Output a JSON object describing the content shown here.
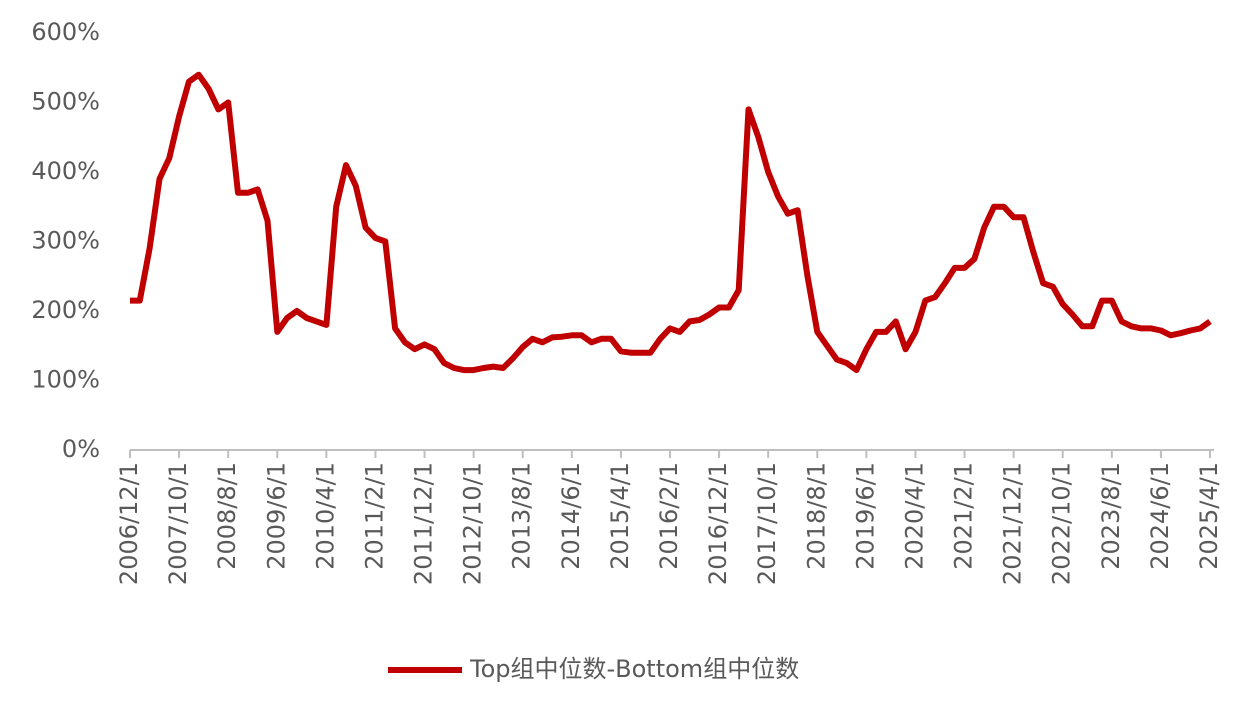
{
  "chart_data": {
    "type": "line",
    "categories": [
      "2006/12/1",
      null,
      null,
      null,
      null,
      "2007/10/1",
      null,
      null,
      null,
      null,
      "2008/8/1",
      null,
      null,
      null,
      null,
      "2009/6/1",
      null,
      null,
      null,
      null,
      "2010/4/1",
      null,
      null,
      null,
      null,
      "2011/2/1",
      null,
      null,
      null,
      null,
      "2011/12/1",
      null,
      null,
      null,
      null,
      "2012/10/1",
      null,
      null,
      null,
      null,
      "2013/8/1",
      null,
      null,
      null,
      null,
      "2014/6/1",
      null,
      null,
      null,
      null,
      "2015/4/1",
      null,
      null,
      null,
      null,
      "2016/2/1",
      null,
      null,
      null,
      null,
      "2016/12/1",
      null,
      null,
      null,
      null,
      "2017/10/1",
      null,
      null,
      null,
      null,
      "2018/8/1",
      null,
      null,
      null,
      null,
      "2019/6/1",
      null,
      null,
      null,
      null,
      "2020/4/1",
      null,
      null,
      null,
      null,
      "2021/2/1",
      null,
      null,
      null,
      null,
      "2021/12/1",
      null,
      null,
      null,
      null,
      "2022/10/1",
      null,
      null,
      null,
      null,
      "2023/8/1",
      null,
      null,
      null,
      null,
      "2024/6/1",
      null,
      null,
      null,
      null,
      "2025/4/1"
    ],
    "series": [
      {
        "name": "Top组中位数-Bottom组中位数",
        "color": "#c00000",
        "values": [
          215,
          215,
          290,
          390,
          420,
          480,
          530,
          540,
          520,
          490,
          500,
          370,
          370,
          375,
          330,
          170,
          190,
          200,
          190,
          185,
          180,
          350,
          410,
          380,
          320,
          305,
          300,
          175,
          155,
          145,
          152,
          145,
          125,
          118,
          115,
          115,
          118,
          120,
          118,
          132,
          148,
          160,
          155,
          162,
          163,
          165,
          165,
          155,
          160,
          160,
          142,
          140,
          140,
          140,
          160,
          175,
          170,
          185,
          187,
          195,
          205,
          205,
          230,
          490,
          450,
          400,
          365,
          340,
          345,
          250,
          170,
          150,
          130,
          125,
          115,
          145,
          170,
          170,
          185,
          145,
          170,
          215,
          220,
          240,
          262,
          262,
          275,
          320,
          350,
          350,
          335,
          335,
          285,
          240,
          235,
          210,
          195,
          178,
          178,
          215,
          215,
          185,
          178,
          175,
          175,
          172,
          165,
          168,
          172,
          175,
          185
        ]
      }
    ],
    "ylim": [
      0,
      600
    ],
    "yticks": [
      {
        "value": 0,
        "label": "0%"
      },
      {
        "value": 100,
        "label": "100%"
      },
      {
        "value": 200,
        "label": "200%"
      },
      {
        "value": 300,
        "label": "300%"
      },
      {
        "value": 400,
        "label": "400%"
      },
      {
        "value": 500,
        "label": "500%"
      },
      {
        "value": 600,
        "label": "600%"
      }
    ],
    "grid": false,
    "legend": "bottom"
  }
}
